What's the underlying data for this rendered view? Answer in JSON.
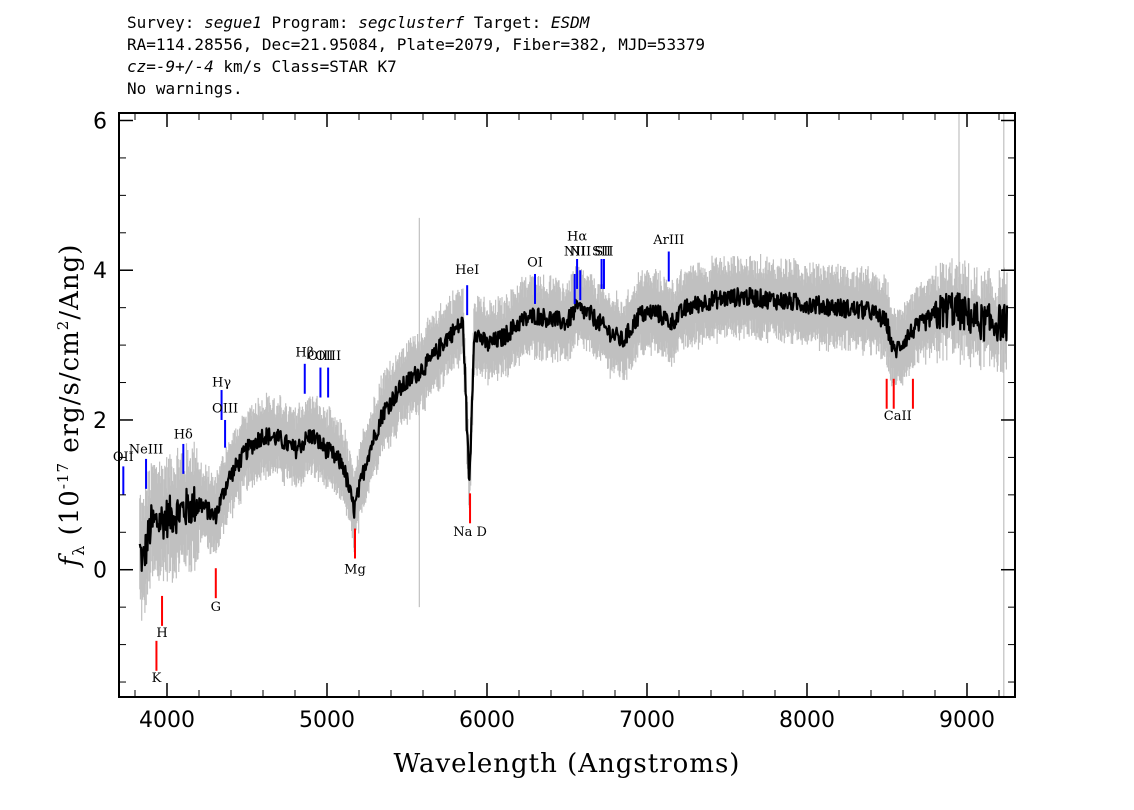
{
  "header": {
    "line1": [
      {
        "text": "Survey: ",
        "italic": false
      },
      {
        "text": "segue1",
        "italic": true
      },
      {
        "text": " Program: ",
        "italic": false
      },
      {
        "text": "segclusterf",
        "italic": true
      },
      {
        "text": " Target: ",
        "italic": false
      },
      {
        "text": "ESDM",
        "italic": true
      }
    ],
    "line2": "RA=114.28556, Dec=21.95084, Plate=2079, Fiber=382, MJD=53379",
    "line3": [
      {
        "text": "cz=-9+/-4",
        "italic": true
      },
      {
        "text": " km/s Class=STAR K7",
        "italic": false
      }
    ],
    "line4": "No warnings."
  },
  "chart_data": {
    "type": "line",
    "xlabel": "Wavelength (Angstroms)",
    "ylabel_prefix": "f",
    "ylabel_sub": "λ",
    "ylabel_mid": " (10",
    "ylabel_exp": "-17",
    "ylabel_mid2": " erg/s/cm",
    "ylabel_exp2": "2",
    "ylabel_end": "/Ang)",
    "xlim": [
      3700,
      9300
    ],
    "ylim": [
      -1.7,
      6.1
    ],
    "x_ticks": [
      4000,
      5000,
      6000,
      7000,
      8000,
      9000
    ],
    "y_ticks": [
      0,
      2,
      4,
      6
    ],
    "grid": false,
    "colors": {
      "flux": "#000000",
      "error": "#c0c0c0",
      "emission": "#0000ff",
      "absorption": "#ff0000"
    },
    "flux_anchor_points": [
      [
        3800,
        0.5
      ],
      [
        3850,
        0.1
      ],
      [
        3900,
        0.6
      ],
      [
        4000,
        0.7
      ],
      [
        4100,
        0.8
      ],
      [
        4200,
        0.9
      ],
      [
        4300,
        0.7
      ],
      [
        4380,
        1.2
      ],
      [
        4500,
        1.6
      ],
      [
        4600,
        1.8
      ],
      [
        4700,
        1.75
      ],
      [
        4800,
        1.6
      ],
      [
        4900,
        1.8
      ],
      [
        5000,
        1.6
      ],
      [
        5100,
        1.4
      ],
      [
        5170,
        0.8
      ],
      [
        5250,
        1.5
      ],
      [
        5350,
        2.1
      ],
      [
        5450,
        2.4
      ],
      [
        5550,
        2.6
      ],
      [
        5650,
        2.8
      ],
      [
        5750,
        3.1
      ],
      [
        5850,
        3.3
      ],
      [
        5890,
        1.1
      ],
      [
        5920,
        3.2
      ],
      [
        6000,
        3.0
      ],
      [
        6100,
        3.1
      ],
      [
        6200,
        3.3
      ],
      [
        6300,
        3.4
      ],
      [
        6400,
        3.35
      ],
      [
        6500,
        3.3
      ],
      [
        6560,
        3.5
      ],
      [
        6650,
        3.4
      ],
      [
        6750,
        3.2
      ],
      [
        6850,
        3.05
      ],
      [
        6950,
        3.4
      ],
      [
        7050,
        3.45
      ],
      [
        7150,
        3.3
      ],
      [
        7250,
        3.5
      ],
      [
        7400,
        3.6
      ],
      [
        7600,
        3.65
      ],
      [
        7800,
        3.6
      ],
      [
        8000,
        3.55
      ],
      [
        8200,
        3.5
      ],
      [
        8400,
        3.45
      ],
      [
        8498,
        3.3
      ],
      [
        8542,
        2.9
      ],
      [
        8662,
        3.2
      ],
      [
        8800,
        3.4
      ],
      [
        8900,
        3.5
      ],
      [
        9000,
        3.4
      ],
      [
        9100,
        3.3
      ],
      [
        9250,
        3.3
      ]
    ],
    "emission_lines": [
      {
        "label": "OII",
        "x": 3727,
        "y_label": 1.45,
        "y0": 1.0,
        "y1": 1.38
      },
      {
        "label": "NeIII",
        "x": 3869,
        "y_label": 1.55,
        "y0": 1.08,
        "y1": 1.48
      },
      {
        "label": "Hδ",
        "x": 4102,
        "y_label": 1.75,
        "y0": 1.28,
        "y1": 1.68
      },
      {
        "label": "Hγ",
        "x": 4341,
        "y_label": 2.45,
        "y0": 2.0,
        "y1": 2.4
      },
      {
        "label": "OIII",
        "x": 4363,
        "y_label": 2.1,
        "y0": 1.63,
        "y1": 2.0
      },
      {
        "label": "Hβ",
        "x": 4861,
        "y_label": 2.85,
        "y0": 2.35,
        "y1": 2.75
      },
      {
        "label": "OIII",
        "x": 4959,
        "y_label": 2.8,
        "y0": 2.3,
        "y1": 2.7
      },
      {
        "label": "OIII",
        "x": 5007,
        "y_label": 2.8,
        "y0": 2.3,
        "y1": 2.7
      },
      {
        "label": "HeI",
        "x": 5876,
        "y_label": 3.95,
        "y0": 3.4,
        "y1": 3.8
      },
      {
        "label": "OI",
        "x": 6300,
        "y_label": 4.05,
        "y0": 3.55,
        "y1": 3.95
      },
      {
        "label": "NII",
        "x": 6548,
        "y_label": 4.2,
        "y0": 3.55,
        "y1": 3.95
      },
      {
        "label": "Hα",
        "x": 6563,
        "y_label": 4.4,
        "y0": 3.75,
        "y1": 4.15
      },
      {
        "label": "NII",
        "x": 6583,
        "y_label": 4.2,
        "y0": 3.6,
        "y1": 4.0
      },
      {
        "label": "SII",
        "x": 6716,
        "y_label": 4.2,
        "y0": 3.75,
        "y1": 4.15
      },
      {
        "label": "SII",
        "x": 6731,
        "y_label": 4.2,
        "y0": 3.75,
        "y1": 4.15
      },
      {
        "label": "ArIII",
        "x": 7136,
        "y_label": 4.35,
        "y0": 3.85,
        "y1": 4.25
      }
    ],
    "absorption_lines": [
      {
        "label": "K",
        "x": 3934,
        "y_label": -1.5,
        "y0": -1.35,
        "y1": -0.95
      },
      {
        "label": "H",
        "x": 3969,
        "y_label": -0.9,
        "y0": -0.75,
        "y1": -0.35
      },
      {
        "label": "G",
        "x": 4305,
        "y_label": -0.55,
        "y0": -0.38,
        "y1": 0.02
      },
      {
        "label": "Mg",
        "x": 5175,
        "y_label": -0.05,
        "y0": 0.15,
        "y1": 0.55
      },
      {
        "label": "Na D",
        "x": 5894,
        "y_label": 0.45,
        "y0": 0.62,
        "y1": 1.02
      },
      {
        "label": "CaII",
        "x": 8498,
        "y_label": 2.0,
        "y0": 2.15,
        "y1": 2.55
      },
      {
        "label": "CaII",
        "x": 8542,
        "y_label": 2.0,
        "y0": 2.15,
        "y1": 2.55
      },
      {
        "label": "CaII",
        "x": 8662,
        "y_label": 2.0,
        "y0": 2.15,
        "y1": 2.55
      }
    ]
  }
}
